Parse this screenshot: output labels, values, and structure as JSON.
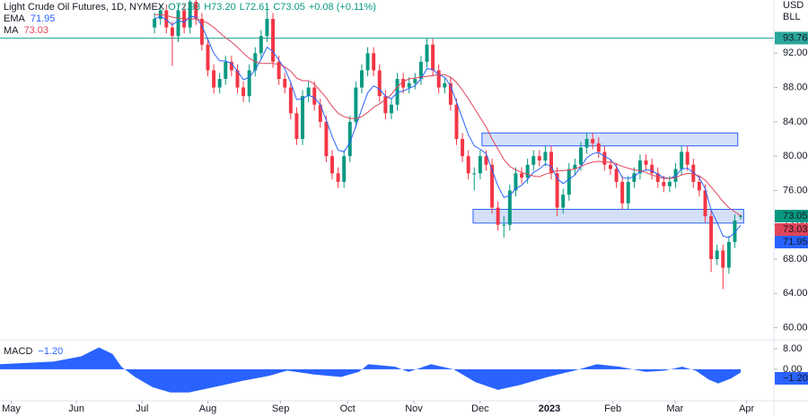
{
  "chart_data": {
    "type": "candlestick",
    "title": "Light Crude Oil Futures, 1D, NYMEX",
    "ohlc_labels": [
      "O72.93",
      "H73.20",
      "L72.61",
      "C73.05",
      "+0.08 (+0.11%)"
    ],
    "currency": "USD",
    "unit": "BLL",
    "up_color": "#089981",
    "down_color": "#f23645",
    "candles": [
      [
        95,
        96.7,
        94.3,
        96
      ],
      [
        96,
        97.7,
        95.3,
        97
      ],
      [
        97,
        97.7,
        94.3,
        95
      ],
      [
        95,
        95.7,
        90.5,
        94
      ],
      [
        94,
        97.7,
        93.3,
        97
      ],
      [
        97,
        97.7,
        94.3,
        95
      ],
      [
        95,
        98.7,
        94.3,
        98
      ],
      [
        98,
        98.7,
        95.3,
        96
      ],
      [
        96,
        96.7,
        92.3,
        93
      ],
      [
        93,
        93.7,
        89.3,
        90
      ],
      [
        90,
        90.7,
        87.3,
        88
      ],
      [
        88,
        89.7,
        87.3,
        89
      ],
      [
        89,
        91.7,
        88.3,
        91
      ],
      [
        91,
        91.7,
        89.3,
        90
      ],
      [
        90,
        90.7,
        87.3,
        88
      ],
      [
        88,
        88.7,
        86.3,
        87
      ],
      [
        87,
        90.7,
        86.3,
        90
      ],
      [
        90,
        92.7,
        89.3,
        92
      ],
      [
        92,
        94.7,
        91.3,
        94
      ],
      [
        94,
        97.5,
        93.3,
        96
      ],
      [
        96,
        96.7,
        90.3,
        91
      ],
      [
        91,
        91.7,
        88.3,
        89
      ],
      [
        89,
        89.7,
        87.3,
        88
      ],
      [
        88,
        88.7,
        84.3,
        85
      ],
      [
        85,
        85.7,
        81.3,
        82
      ],
      [
        82,
        87.7,
        81.3,
        87
      ],
      [
        87,
        88.7,
        86.3,
        88
      ],
      [
        88,
        88.7,
        85.3,
        86
      ],
      [
        86,
        86.7,
        83.3,
        84
      ],
      [
        84,
        84.7,
        79.3,
        80
      ],
      [
        80,
        80.7,
        77.3,
        78
      ],
      [
        78,
        78.7,
        76.3,
        77
      ],
      [
        77,
        80.7,
        76.3,
        80
      ],
      [
        80,
        84.7,
        79.3,
        84
      ],
      [
        84,
        88.7,
        83.3,
        88
      ],
      [
        88,
        90.7,
        87.3,
        90
      ],
      [
        90,
        92.7,
        89.3,
        92
      ],
      [
        92,
        92.7,
        89.3,
        90
      ],
      [
        90,
        90.7,
        86.3,
        87
      ],
      [
        87,
        87.7,
        84.3,
        85
      ],
      [
        85,
        86.7,
        84.3,
        86
      ],
      [
        86,
        89.7,
        85.3,
        89
      ],
      [
        89,
        89.7,
        87.3,
        88
      ],
      [
        88,
        89.2,
        87.3,
        88.5
      ],
      [
        88.5,
        89.7,
        87.8,
        89
      ],
      [
        89,
        91.7,
        88.3,
        91
      ],
      [
        91,
        93.8,
        90.3,
        93
      ],
      [
        93,
        93.7,
        89.3,
        90
      ],
      [
        90,
        90.7,
        87.3,
        88
      ],
      [
        88,
        89.2,
        87.3,
        88.5
      ],
      [
        88.5,
        89.2,
        85.3,
        86
      ],
      [
        86,
        86.7,
        81.3,
        82
      ],
      [
        82,
        82.7,
        79.3,
        80
      ],
      [
        80,
        80.7,
        77.3,
        78
      ],
      [
        78,
        78.7,
        76,
        78
      ],
      [
        78,
        80.7,
        77.3,
        80
      ],
      [
        80,
        80.7,
        78.3,
        79
      ],
      [
        79,
        79.7,
        73.3,
        74
      ],
      [
        74,
        74.7,
        71.3,
        72
      ],
      [
        72,
        73,
        70.5,
        72
      ],
      [
        72,
        76.7,
        71.3,
        76
      ],
      [
        76,
        78.7,
        75.3,
        78
      ],
      [
        78,
        78.7,
        76.8,
        77.5
      ],
      [
        77.5,
        79.7,
        76.8,
        79
      ],
      [
        79,
        80.7,
        78.3,
        80
      ],
      [
        80,
        80.7,
        78.8,
        79.5
      ],
      [
        79.5,
        81.2,
        78.8,
        80.5
      ],
      [
        80.5,
        81.2,
        77.3,
        78
      ],
      [
        78,
        78.7,
        73,
        74
      ],
      [
        74,
        76.2,
        73.3,
        75.5
      ],
      [
        75.5,
        79.2,
        74.8,
        78.5
      ],
      [
        78.5,
        79.7,
        77.8,
        79
      ],
      [
        79,
        81.7,
        78.3,
        81
      ],
      [
        81,
        82.7,
        80.3,
        82
      ],
      [
        82,
        82.7,
        80.8,
        81.5
      ],
      [
        81.5,
        82.2,
        79.8,
        80.5
      ],
      [
        80.5,
        81.2,
        78.3,
        79
      ],
      [
        79,
        79.7,
        77.8,
        78.5
      ],
      [
        78.5,
        79.2,
        76.3,
        77
      ],
      [
        77,
        77.7,
        73.8,
        74.5
      ],
      [
        74.5,
        77.7,
        73.8,
        77
      ],
      [
        77,
        78.7,
        76.3,
        78
      ],
      [
        78,
        80.2,
        77.3,
        79.5
      ],
      [
        79.5,
        80.2,
        78.3,
        79
      ],
      [
        79,
        79.7,
        77.3,
        78
      ],
      [
        78,
        78.7,
        76.3,
        77
      ],
      [
        77,
        77.7,
        75.8,
        76.5
      ],
      [
        76.5,
        77.7,
        75.8,
        77
      ],
      [
        77,
        79.2,
        76.3,
        78.5
      ],
      [
        78.5,
        81.2,
        77.8,
        80.5
      ],
      [
        80.5,
        81.2,
        78.3,
        79
      ],
      [
        79,
        79.7,
        76.3,
        77
      ],
      [
        77,
        77.7,
        75.3,
        76
      ],
      [
        76,
        76.7,
        72.3,
        73
      ],
      [
        73,
        73.7,
        66.5,
        68
      ],
      [
        68,
        69.7,
        67.3,
        69
      ],
      [
        69,
        69.7,
        64.5,
        67
      ],
      [
        67,
        70.7,
        66.3,
        70
      ],
      [
        70,
        73.2,
        69.3,
        72.5
      ],
      [
        72.93,
        73.2,
        72.61,
        73.05
      ]
    ],
    "lines": [
      {
        "name": "EMA",
        "color": "#2962ff",
        "values": [
          96,
          96.3,
          95.9,
          95.3,
          95.8,
          95.6,
          96.3,
          96.2,
          95.2,
          93.6,
          92,
          91.1,
          91.1,
          90.8,
          89.9,
          88.9,
          89.2,
          90.1,
          91.3,
          92.7,
          92.2,
          91.2,
          90.2,
          88.6,
          86.6,
          86.7,
          87.1,
          86.8,
          86,
          84.2,
          82.3,
          80.7,
          80.5,
          81.6,
          83.5,
          85.5,
          87.4,
          88.2,
          87.8,
          87,
          86.7,
          87.4,
          87.6,
          87.9,
          88.2,
          89,
          90.2,
          90.1,
          89.5,
          89.2,
          88.2,
          86.3,
          84.4,
          82.5,
          81.2,
          80.8,
          80.3,
          78.4,
          76.5,
          75.2,
          75.4,
          76.2,
          76.6,
          77.3,
          78.1,
          78.5,
          79.1,
          78.8,
          77.4,
          76.8,
          77.3,
          77.8,
          78.8,
          79.8,
          80.3,
          80.4,
          80,
          79.6,
          78.8,
          77.5,
          77.4,
          77.6,
          78.2,
          78.4,
          78.3,
          77.9,
          77.5,
          77.4,
          77.7,
          78.5,
          78.6,
          78.1,
          77.5,
          76.2,
          73.7,
          72.3,
          70.7,
          70.5,
          71.1,
          71.95
        ]
      },
      {
        "name": "MA",
        "color": "#e0445a",
        "values": [
          96.5,
          96.5,
          96.4,
          96.2,
          96.1,
          96,
          96,
          96,
          95.8,
          95.5,
          95,
          94.4,
          93.8,
          93.3,
          92.7,
          92,
          91.4,
          91,
          90.8,
          90.8,
          90.8,
          90.7,
          90.4,
          89.9,
          89.1,
          88.8,
          88.8,
          88.4,
          87.6,
          86.8,
          85.8,
          85,
          84.6,
          84.4,
          84.4,
          84.6,
          85.1,
          85.7,
          86.1,
          86.6,
          87.2,
          88.1,
          88.7,
          89,
          89.1,
          89.2,
          89.3,
          89.4,
          89.5,
          89.5,
          89.2,
          88.6,
          87.7,
          86.7,
          85.6,
          84.5,
          83.4,
          82,
          80.8,
          79.6,
          78.8,
          78.4,
          78.1,
          77.9,
          77.7,
          77.6,
          77.9,
          78.1,
          78.3,
          78.3,
          78.4,
          78.5,
          78.8,
          79.1,
          79.3,
          79.4,
          79.3,
          79.3,
          79.1,
          78.8,
          78.6,
          78.4,
          78.3,
          78.1,
          77.8,
          77.6,
          77.4,
          77.4,
          77.5,
          77.8,
          78,
          77.9,
          77.7,
          77.2,
          76.4,
          75.6,
          74.7,
          74,
          73.5,
          73.03
        ]
      }
    ],
    "hline": {
      "value": 93.76,
      "color": "#2ba69b"
    },
    "zones": [
      {
        "x": [
          55.3,
          98.5
        ],
        "y": [
          81.2,
          82.7
        ]
      },
      {
        "x": [
          53.8,
          99.5
        ],
        "y": [
          72.2,
          73.8
        ]
      }
    ],
    "zone_color": "#c5d6f7",
    "xlim": [
      -26.1,
      104.6
    ],
    "xticks": [
      {
        "value": -24.2,
        "label": "May"
      },
      {
        "value": -13.2,
        "label": "Jun"
      },
      {
        "value": -2.1,
        "label": "Jul"
      },
      {
        "value": 9,
        "label": "Aug"
      },
      {
        "value": 21.3,
        "label": "Sep"
      },
      {
        "value": 32.6,
        "label": "Oct"
      },
      {
        "value": 43.8,
        "label": "Nov"
      },
      {
        "value": 55,
        "label": "Dec"
      },
      {
        "value": 66.7,
        "label": "2023"
      },
      {
        "value": 77.4,
        "label": "Feb"
      },
      {
        "value": 87.9,
        "label": "Mar"
      },
      {
        "value": 100,
        "label": "Apr"
      }
    ],
    "ylim": [
      58.7,
      98.2
    ],
    "yticks": [
      {
        "value": 60,
        "label": "60.00"
      },
      {
        "value": 64,
        "label": "64.00"
      },
      {
        "value": 68,
        "label": "68.00"
      },
      {
        "value": 72,
        "label": "72.00"
      },
      {
        "value": 76,
        "label": "76.00"
      },
      {
        "value": 80,
        "label": "80.00"
      },
      {
        "value": 84,
        "label": "84.00"
      },
      {
        "value": 88,
        "label": "88.00"
      },
      {
        "value": 92,
        "label": "92.00"
      }
    ],
    "macd": {
      "name": "MACD",
      "color": "#2962ff",
      "x": [
        -26.1,
        -21.5,
        -17,
        -12.4,
        -9.4,
        -7.1,
        -5.6,
        -3.3,
        -0.3,
        2.7,
        5.8,
        8.8,
        11.8,
        14.8,
        19.4,
        22.4,
        27,
        31.5,
        34.5,
        36.1,
        40.6,
        42.9,
        46.7,
        50.5,
        54.2,
        58,
        61.8,
        66.4,
        70.9,
        74.7,
        78.5,
        83,
        86.1,
        89.1,
        91.4,
        93.6,
        95.2,
        97.4,
        99
      ],
      "values": [
        2,
        2.5,
        3,
        5,
        8.5,
        6,
        1,
        -3,
        -7,
        -9,
        -9,
        -7.5,
        -6,
        -4.5,
        -2.5,
        -0.5,
        -2,
        -3,
        -1,
        2,
        1,
        -1,
        2,
        0,
        -5,
        -8,
        -6,
        -3,
        -0.5,
        2,
        1,
        -1,
        -0.5,
        1,
        -0.5,
        -4,
        -5.5,
        -3.5,
        -1.2
      ],
      "value_labels": [
        null,
        null,
        null,
        null,
        null,
        null,
        null,
        null,
        null,
        null,
        null,
        null,
        null,
        null,
        null,
        null,
        null,
        null,
        null,
        null,
        null,
        null,
        null,
        null,
        null,
        null,
        null,
        null,
        null,
        null,
        null,
        null,
        null,
        null,
        null,
        null,
        null,
        null,
        "−1.20"
      ],
      "ylim": [
        -12.2,
        11.1
      ],
      "yticks": [
        {
          "value": 0,
          "label": "0.00"
        },
        {
          "value": 8,
          "label": "8.00"
        }
      ]
    }
  }
}
